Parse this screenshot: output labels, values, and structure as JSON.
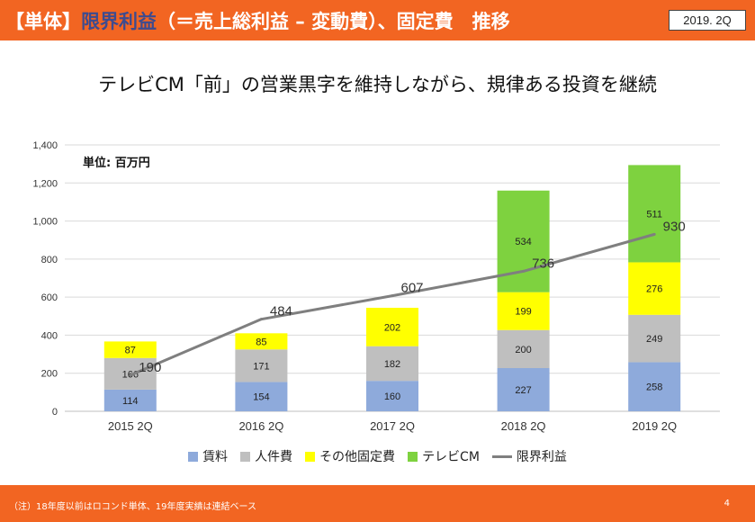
{
  "header": {
    "title_prefix": "【単体】",
    "title_highlight": "限界利益",
    "title_suffix": "（＝売上総利益 – 変動費）、固定費　推移",
    "period": "2019. 2Q"
  },
  "subtitle": "テレビCM「前」の営業黒字を維持しながら、規律ある投資を継続",
  "unit_label": "単位: 百万円",
  "footer": {
    "note": "（注）18年度以前はロコンド単体、19年度実績は連結ベース",
    "page": "4"
  },
  "colors": {
    "accent": "#f26522",
    "highlight": "#3d4b8f",
    "rent": "#8eaadb",
    "personnel": "#bfbfbf",
    "other_fixed": "#ffff00",
    "tv_cm": "#7ed23f",
    "marginal": "#7f7f7f"
  },
  "chart_data": {
    "type": "bar",
    "stacked": true,
    "categories": [
      "2015 2Q",
      "2016 2Q",
      "2017 2Q",
      "2018 2Q",
      "2019 2Q"
    ],
    "ylim": [
      0,
      1400
    ],
    "yticks": [
      0,
      200,
      400,
      600,
      800,
      1000,
      1200,
      1400
    ],
    "ytick_labels": [
      "0",
      "200",
      "400",
      "600",
      "800",
      "1,000",
      "1,200",
      "1,400"
    ],
    "grid": true,
    "legend_position": "bottom",
    "series": [
      {
        "name": "賃料",
        "values": [
          114,
          154,
          160,
          227,
          258
        ],
        "color": "#8eaadb"
      },
      {
        "name": "人件費",
        "values": [
          166,
          171,
          182,
          200,
          249
        ],
        "color": "#bfbfbf"
      },
      {
        "name": "その他固定費",
        "values": [
          87,
          85,
          202,
          199,
          276
        ],
        "color": "#ffff00"
      },
      {
        "name": "テレビCM",
        "values": [
          null,
          null,
          null,
          534,
          511
        ],
        "color": "#7ed23f"
      }
    ],
    "line": {
      "name": "限界利益",
      "values": [
        190,
        484,
        607,
        736,
        930
      ],
      "color": "#7f7f7f"
    }
  }
}
